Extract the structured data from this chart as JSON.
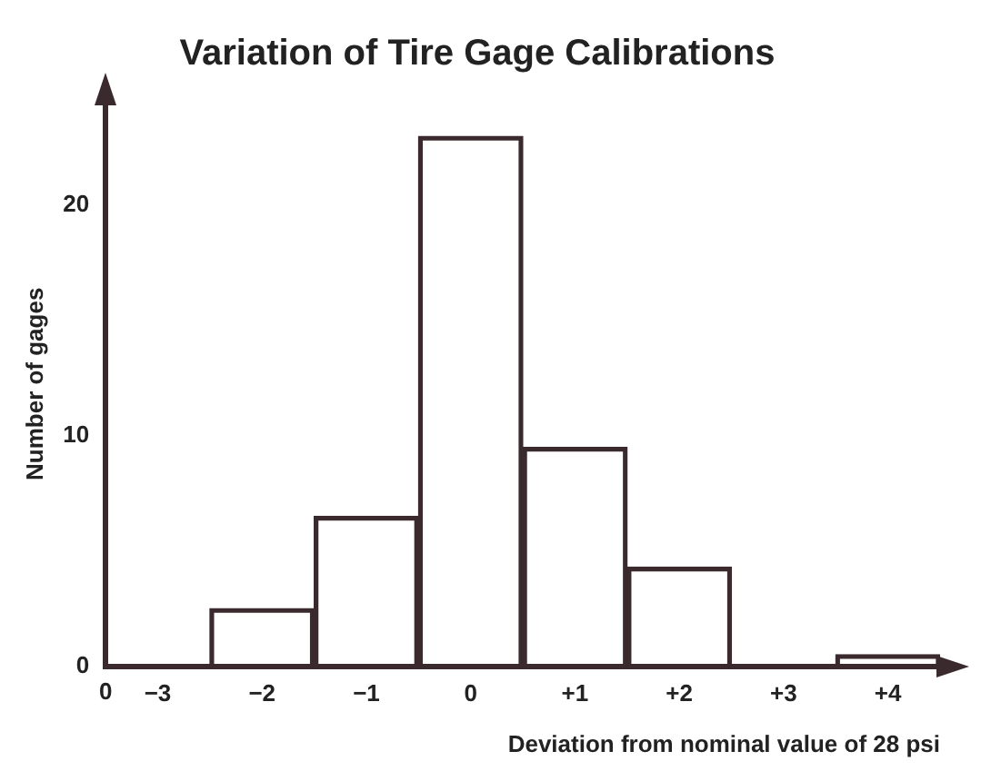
{
  "chart_data": {
    "type": "bar",
    "title": "Variation of Tire Gage Calibrations",
    "xlabel": "Deviation from nominal value of 28 psi",
    "ylabel": "Number of gages",
    "categories": [
      "−3",
      "−2",
      "−1",
      "0",
      "+1",
      "+2",
      "+3",
      "+4"
    ],
    "values": [
      0,
      2.5,
      6.5,
      23,
      9.5,
      4.3,
      0,
      0.5
    ],
    "color": "#3a2a2e",
    "annotations": [
      "0"
    ],
    "ylim": [
      0,
      24.5
    ],
    "yticks": [
      0,
      10,
      20
    ],
    "grid": false,
    "legend": false
  }
}
